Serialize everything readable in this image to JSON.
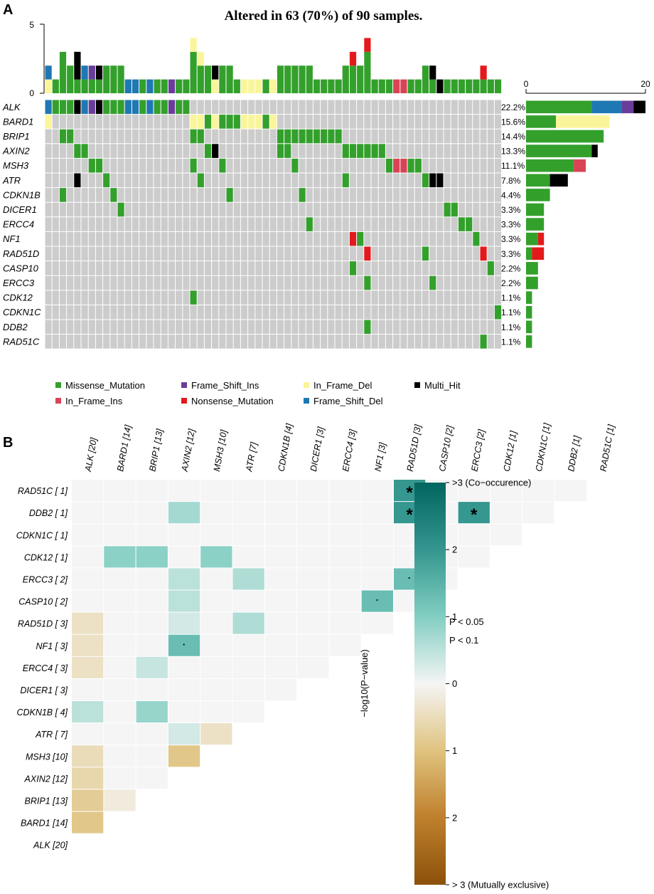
{
  "colors": {
    "Missense_Mutation": "#33A02C",
    "Frame_Shift_Ins": "#6A3D9A",
    "In_Frame_Del": "#FAF59A",
    "Multi_Hit": "#000000",
    "In_Frame_Ins": "#D94356",
    "Nonsense_Mutation": "#E31A1C",
    "Frame_Shift_Del": "#1F78B4",
    "empty": "#CCCCCC"
  },
  "panelA": {
    "label": "A",
    "title": "Altered in 63 (70%) of 90 samples.",
    "top_axis_ticks": [
      "0",
      "5"
    ],
    "side_axis_ticks": [
      "0",
      "20"
    ]
  },
  "panelB": {
    "label": "B",
    "legend_sig": [
      {
        "symbol": "*",
        "text": "P < 0.05"
      },
      {
        "symbol": "·",
        "text": "P < 0.1"
      }
    ],
    "colorbar_title": "−log10(P−value)",
    "colorbar_ticks": [
      ">3 (Co−occurence)",
      "2",
      "1",
      "0",
      "1",
      "2",
      "> 3 (Mutually exclusive)"
    ]
  },
  "chart_data": [
    {
      "type": "oncoplot",
      "title": "Altered in 63 (70%) of 90 samples.",
      "n_samples_shown": 63,
      "categories": [
        "Missense_Mutation",
        "Frame_Shift_Ins",
        "In_Frame_Del",
        "Multi_Hit",
        "In_Frame_Ins",
        "Nonsense_Mutation",
        "Frame_Shift_Del"
      ],
      "legend_rows": [
        [
          "Missense_Mutation",
          "Frame_Shift_Ins",
          "In_Frame_Del",
          "Multi_Hit"
        ],
        [
          "In_Frame_Ins",
          "Nonsense_Mutation",
          "Frame_Shift_Del"
        ]
      ],
      "genes": [
        {
          "name": "ALK",
          "pct": "22.2%",
          "cells": [
            [
              0,
              "Frame_Shift_Del"
            ],
            [
              1,
              "Missense_Mutation"
            ],
            [
              2,
              "Missense_Mutation"
            ],
            [
              3,
              "Missense_Mutation"
            ],
            [
              4,
              "Multi_Hit"
            ],
            [
              5,
              "Frame_Shift_Del"
            ],
            [
              6,
              "Frame_Shift_Ins"
            ],
            [
              7,
              "Multi_Hit"
            ],
            [
              8,
              "Missense_Mutation"
            ],
            [
              9,
              "Missense_Mutation"
            ],
            [
              10,
              "Missense_Mutation"
            ],
            [
              11,
              "Frame_Shift_Del"
            ],
            [
              12,
              "Frame_Shift_Del"
            ],
            [
              13,
              "Missense_Mutation"
            ],
            [
              14,
              "Frame_Shift_Del"
            ],
            [
              15,
              "Missense_Mutation"
            ],
            [
              16,
              "Missense_Mutation"
            ],
            [
              17,
              "Frame_Shift_Ins"
            ],
            [
              18,
              "Missense_Mutation"
            ],
            [
              19,
              "Missense_Mutation"
            ]
          ],
          "bar": {
            "Missense_Mutation": 11,
            "Frame_Shift_Del": 5,
            "Frame_Shift_Ins": 2,
            "Multi_Hit": 2
          }
        },
        {
          "name": "BARD1",
          "pct": "15.6%",
          "cells": [
            [
              0,
              "In_Frame_Del"
            ],
            [
              20,
              "In_Frame_Del"
            ],
            [
              21,
              "In_Frame_Del"
            ],
            [
              22,
              "Missense_Mutation"
            ],
            [
              23,
              "In_Frame_Del"
            ],
            [
              24,
              "Missense_Mutation"
            ],
            [
              25,
              "Missense_Mutation"
            ],
            [
              26,
              "Missense_Mutation"
            ],
            [
              27,
              "In_Frame_Del"
            ],
            [
              28,
              "In_Frame_Del"
            ],
            [
              29,
              "In_Frame_Del"
            ],
            [
              30,
              "Missense_Mutation"
            ],
            [
              31,
              "In_Frame_Del"
            ]
          ],
          "bar": {
            "Missense_Mutation": 5,
            "In_Frame_Del": 9
          }
        },
        {
          "name": "BRIP1",
          "pct": "14.4%",
          "cells": [
            [
              2,
              "Missense_Mutation"
            ],
            [
              3,
              "Missense_Mutation"
            ],
            [
              20,
              "Missense_Mutation"
            ],
            [
              21,
              "Missense_Mutation"
            ],
            [
              32,
              "Missense_Mutation"
            ],
            [
              33,
              "Missense_Mutation"
            ],
            [
              34,
              "Missense_Mutation"
            ],
            [
              35,
              "Missense_Mutation"
            ],
            [
              36,
              "Missense_Mutation"
            ],
            [
              37,
              "Missense_Mutation"
            ],
            [
              38,
              "Missense_Mutation"
            ],
            [
              39,
              "Missense_Mutation"
            ],
            [
              40,
              "Missense_Mutation"
            ]
          ],
          "bar": {
            "Missense_Mutation": 13
          }
        },
        {
          "name": "AXIN2",
          "pct": "13.3%",
          "cells": [
            [
              4,
              "Missense_Mutation"
            ],
            [
              5,
              "Missense_Mutation"
            ],
            [
              22,
              "Missense_Mutation"
            ],
            [
              23,
              "Multi_Hit"
            ],
            [
              32,
              "Missense_Mutation"
            ],
            [
              33,
              "Missense_Mutation"
            ],
            [
              41,
              "Missense_Mutation"
            ],
            [
              42,
              "Missense_Mutation"
            ],
            [
              43,
              "Missense_Mutation"
            ],
            [
              44,
              "Missense_Mutation"
            ],
            [
              45,
              "Missense_Mutation"
            ],
            [
              46,
              "Missense_Mutation"
            ]
          ],
          "bar": {
            "Missense_Mutation": 11,
            "Multi_Hit": 1
          }
        },
        {
          "name": "MSH3",
          "pct": "11.1%",
          "cells": [
            [
              6,
              "Missense_Mutation"
            ],
            [
              7,
              "Missense_Mutation"
            ],
            [
              20,
              "Missense_Mutation"
            ],
            [
              24,
              "Missense_Mutation"
            ],
            [
              34,
              "Missense_Mutation"
            ],
            [
              47,
              "Missense_Mutation"
            ],
            [
              48,
              "In_Frame_Ins"
            ],
            [
              49,
              "In_Frame_Ins"
            ],
            [
              50,
              "Missense_Mutation"
            ],
            [
              51,
              "Missense_Mutation"
            ]
          ],
          "bar": {
            "Missense_Mutation": 8,
            "In_Frame_Ins": 2
          }
        },
        {
          "name": "ATR",
          "pct": "7.8%",
          "cells": [
            [
              4,
              "Multi_Hit"
            ],
            [
              8,
              "Missense_Mutation"
            ],
            [
              21,
              "Missense_Mutation"
            ],
            [
              41,
              "Missense_Mutation"
            ],
            [
              52,
              "Missense_Mutation"
            ],
            [
              53,
              "Multi_Hit"
            ],
            [
              54,
              "Multi_Hit"
            ]
          ],
          "bar": {
            "Missense_Mutation": 4,
            "Multi_Hit": 3
          }
        },
        {
          "name": "CDKN1B",
          "pct": "4.4%",
          "cells": [
            [
              2,
              "Missense_Mutation"
            ],
            [
              9,
              "Missense_Mutation"
            ],
            [
              25,
              "Missense_Mutation"
            ],
            [
              35,
              "Missense_Mutation"
            ]
          ],
          "bar": {
            "Missense_Mutation": 4
          }
        },
        {
          "name": "DICER1",
          "pct": "3.3%",
          "cells": [
            [
              10,
              "Missense_Mutation"
            ],
            [
              55,
              "Missense_Mutation"
            ],
            [
              56,
              "Missense_Mutation"
            ]
          ],
          "bar": {
            "Missense_Mutation": 3
          }
        },
        {
          "name": "ERCC4",
          "pct": "3.3%",
          "cells": [
            [
              36,
              "Missense_Mutation"
            ],
            [
              57,
              "Missense_Mutation"
            ],
            [
              58,
              "Missense_Mutation"
            ]
          ],
          "bar": {
            "Missense_Mutation": 3
          }
        },
        {
          "name": "NF1",
          "pct": "3.3%",
          "cells": [
            [
              42,
              "Nonsense_Mutation"
            ],
            [
              43,
              "Missense_Mutation"
            ],
            [
              59,
              "Missense_Mutation"
            ]
          ],
          "bar": {
            "Missense_Mutation": 2,
            "Nonsense_Mutation": 1
          }
        },
        {
          "name": "RAD51D",
          "pct": "3.3%",
          "cells": [
            [
              44,
              "Nonsense_Mutation"
            ],
            [
              52,
              "Missense_Mutation"
            ],
            [
              60,
              "Nonsense_Mutation"
            ]
          ],
          "bar": {
            "Missense_Mutation": 1,
            "Nonsense_Mutation": 2
          }
        },
        {
          "name": "CASP10",
          "pct": "2.2%",
          "cells": [
            [
              42,
              "Missense_Mutation"
            ],
            [
              61,
              "Missense_Mutation"
            ]
          ],
          "bar": {
            "Missense_Mutation": 2
          }
        },
        {
          "name": "ERCC3",
          "pct": "2.2%",
          "cells": [
            [
              44,
              "Missense_Mutation"
            ],
            [
              53,
              "Missense_Mutation"
            ]
          ],
          "bar": {
            "Missense_Mutation": 2
          }
        },
        {
          "name": "CDK12",
          "pct": "1.1%",
          "cells": [
            [
              20,
              "Missense_Mutation"
            ]
          ],
          "bar": {
            "Missense_Mutation": 1
          }
        },
        {
          "name": "CDKN1C",
          "pct": "1.1%",
          "cells": [
            [
              62,
              "Missense_Mutation"
            ]
          ],
          "bar": {
            "Missense_Mutation": 1
          }
        },
        {
          "name": "DDB2",
          "pct": "1.1%",
          "cells": [
            [
              44,
              "Missense_Mutation"
            ]
          ],
          "bar": {
            "Missense_Mutation": 1
          }
        },
        {
          "name": "RAD51C",
          "pct": "1.1%",
          "cells": [
            [
              60,
              "Missense_Mutation"
            ]
          ],
          "bar": {
            "Missense_Mutation": 1
          }
        }
      ],
      "top_bar": {
        "ylim": [
          0,
          5
        ]
      },
      "side_bar": {
        "xlim": [
          0,
          20
        ]
      }
    },
    {
      "type": "heatmap",
      "title": "",
      "colorbar_label": "−log10(P−value)",
      "value_range": [
        -3,
        3
      ],
      "columns": [
        "ALK [20]",
        "BARD1 [14]",
        "BRIP1 [13]",
        "AXIN2 [12]",
        "MSH3 [10]",
        "ATR [7]",
        "CDKN1B [4]",
        "DICER1 [3]",
        "ERCC4 [3]",
        "NF1 [3]",
        "RAD51D [3]",
        "CASP10 [2]",
        "ERCC3 [2]",
        "CDK12 [1]",
        "CDKN1C [1]",
        "DDB2 [1]",
        "RAD51C [1]"
      ],
      "rows": [
        "RAD51C [ 1]",
        "DDB2 [ 1]",
        "CDKN1C [ 1]",
        "CDK12 [ 1]",
        "ERCC3 [ 2]",
        "CASP10 [ 2]",
        "RAD51D [ 3]",
        "NF1 [ 3]",
        "ERCC4 [ 3]",
        "DICER1 [ 3]",
        "CDKN1B [ 4]",
        "ATR [ 7]",
        "MSH3 [10]",
        "AXIN2 [12]",
        "BRIP1 [13]",
        "BARD1 [14]",
        "ALK [20]"
      ],
      "values": [
        [
          0,
          0,
          0,
          0,
          0,
          0,
          0,
          0,
          0,
          0,
          2.0,
          0,
          0,
          0,
          0,
          0
        ],
        [
          0,
          0,
          0,
          0.7,
          0,
          0,
          0,
          0,
          0,
          0,
          2.0,
          0,
          2.0,
          0,
          0
        ],
        [
          0,
          0,
          0,
          0,
          0,
          0,
          0,
          0,
          0,
          0,
          0,
          0,
          0,
          0
        ],
        [
          0,
          0.9,
          0.9,
          0,
          0.9,
          0,
          0,
          0,
          0,
          0,
          0,
          0,
          0
        ],
        [
          0,
          0,
          0,
          0.5,
          0,
          0.6,
          0,
          0,
          0,
          0,
          1.3,
          0
        ],
        [
          0,
          0,
          0,
          0.5,
          0,
          0,
          0,
          0,
          0,
          1.3,
          0
        ],
        [
          -0.4,
          0,
          0,
          0.3,
          0,
          0.6,
          0,
          0,
          0,
          0
        ],
        [
          -0.4,
          0,
          0,
          1.3,
          0,
          0,
          0,
          0,
          0
        ],
        [
          -0.4,
          0,
          0.4,
          0,
          0,
          0,
          0,
          0
        ],
        [
          0,
          0,
          0,
          0,
          0,
          0,
          0
        ],
        [
          0.5,
          0,
          0.8,
          0,
          0,
          0
        ],
        [
          0,
          0,
          0,
          0.3,
          -0.4
        ],
        [
          -0.5,
          0,
          0,
          -0.9
        ],
        [
          -0.6,
          0,
          0
        ],
        [
          -0.8,
          -0.2
        ],
        [
          -0.9
        ],
        []
      ],
      "significance": [
        {
          "row": "RAD51C [ 1]",
          "col": "RAD51D [3]",
          "mark": "*"
        },
        {
          "row": "DDB2 [ 1]",
          "col": "RAD51D [3]",
          "mark": "*"
        },
        {
          "row": "DDB2 [ 1]",
          "col": "ERCC3 [2]",
          "mark": "*"
        },
        {
          "row": "ERCC3 [ 2]",
          "col": "RAD51D [3]",
          "mark": "·"
        },
        {
          "row": "CASP10 [ 2]",
          "col": "NF1 [3]",
          "mark": "·"
        },
        {
          "row": "NF1 [ 3]",
          "col": "AXIN2 [12]",
          "mark": "·"
        }
      ]
    }
  ]
}
